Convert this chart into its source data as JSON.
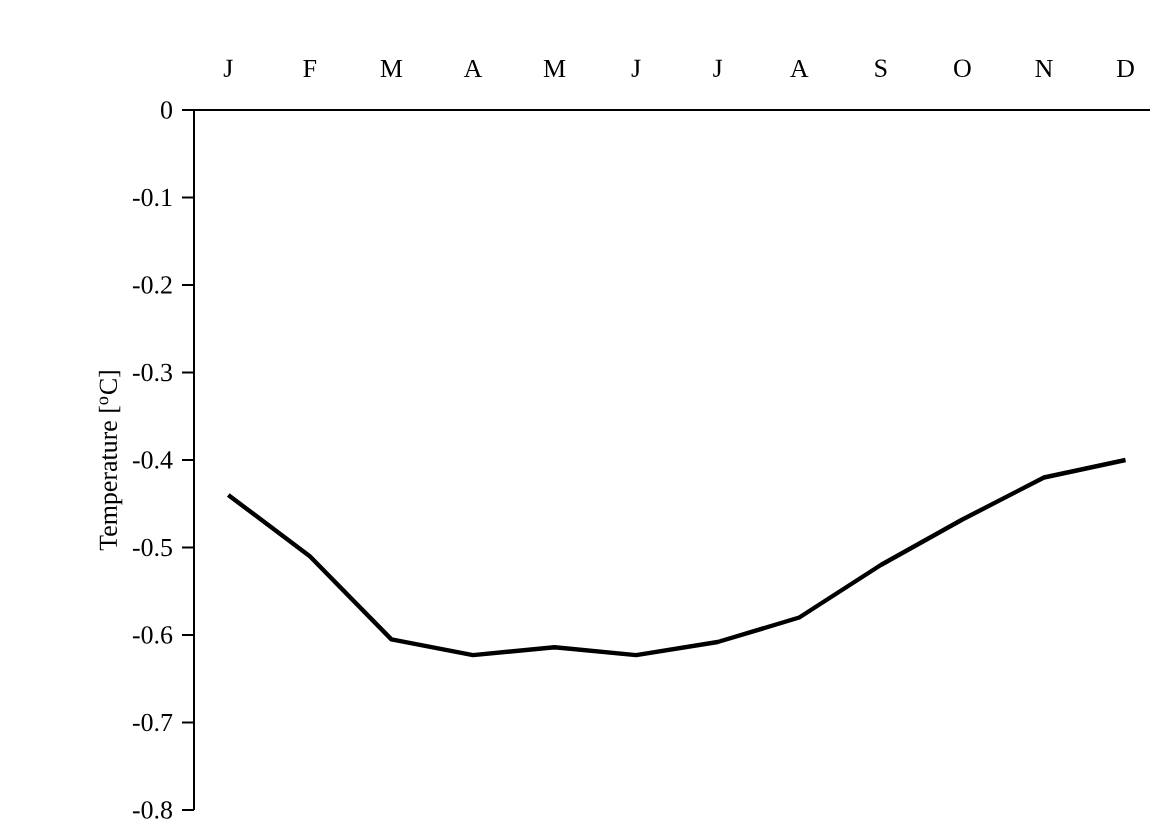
{
  "chart_data": {
    "type": "line",
    "ylabel": "Temperature [$^{o}$C]",
    "categories": [
      "J",
      "F",
      "M",
      "A",
      "M",
      "J",
      "J",
      "A",
      "S",
      "O",
      "N",
      "D"
    ],
    "series": [
      {
        "color": "#000000",
        "values": [
          -0.44,
          -0.51,
          -0.605,
          -0.623,
          -0.614,
          -0.623,
          -0.608,
          -0.58,
          -0.52,
          -0.468,
          -0.42,
          -0.4
        ]
      }
    ],
    "ylim": [
      -0.8,
      0
    ],
    "yticks": [
      0,
      -0.1,
      -0.2,
      -0.3,
      -0.4,
      -0.5,
      -0.6,
      -0.7,
      -0.8
    ],
    "grid": false,
    "marker": "none",
    "line_style": "solid"
  }
}
